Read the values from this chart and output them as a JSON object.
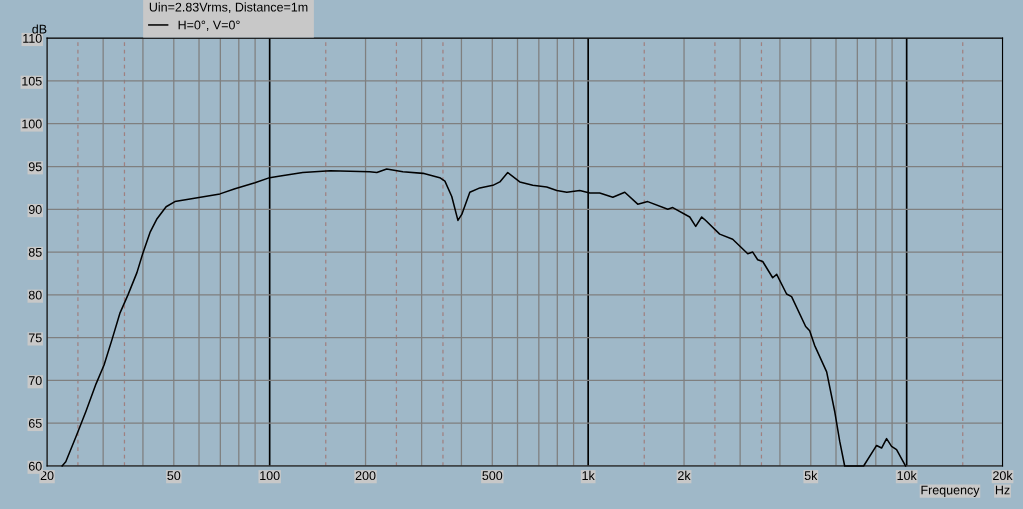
{
  "chart_data": {
    "type": "line",
    "xlabel": "Frequency",
    "ylabel": "dB",
    "legend_title": "Uin=2.83Vrms, Distance=1m",
    "legend": "top left",
    "log": "x",
    "grid": true,
    "marker": "none",
    "line_style": "solid",
    "annotations": [
      "Hz"
    ],
    "xlim": [
      20,
      20000
    ],
    "ylim": [
      60,
      110
    ],
    "xticks": [
      20,
      {
        "value": 25,
        "label": null
      },
      {
        "value": 30,
        "label": null
      },
      {
        "value": 35,
        "label": null
      },
      {
        "value": 40,
        "label": null
      },
      50,
      {
        "value": 60,
        "label": null
      },
      {
        "value": 70,
        "label": null
      },
      {
        "value": 80,
        "label": null
      },
      {
        "value": 90,
        "label": null
      },
      100,
      {
        "value": 150,
        "label": null
      },
      200,
      {
        "value": 250,
        "label": null
      },
      {
        "value": 300,
        "label": null
      },
      {
        "value": 350,
        "label": null
      },
      {
        "value": 400,
        "label": null
      },
      500,
      {
        "value": 600,
        "label": null
      },
      {
        "value": 700,
        "label": null
      },
      {
        "value": 800,
        "label": null
      },
      {
        "value": 900,
        "label": null
      },
      {
        "value": 1000,
        "label": "1k"
      },
      {
        "value": 1500,
        "label": null
      },
      {
        "value": 2000,
        "label": "2k"
      },
      {
        "value": 2500,
        "label": null
      },
      {
        "value": 3000,
        "label": null
      },
      {
        "value": 3500,
        "label": null
      },
      {
        "value": 4000,
        "label": null
      },
      {
        "value": 5000,
        "label": "5k"
      },
      {
        "value": 6000,
        "label": null
      },
      {
        "value": 7000,
        "label": null
      },
      {
        "value": 8000,
        "label": null
      },
      {
        "value": 9000,
        "label": null
      },
      {
        "value": 10000,
        "label": "10k"
      },
      {
        "value": 15000,
        "label": null
      },
      {
        "value": 20000,
        "label": "20k"
      }
    ],
    "yticks": [
      60,
      65,
      70,
      75,
      80,
      85,
      90,
      95,
      100,
      105,
      110
    ],
    "series": [
      {
        "name": "H=0°, V=0°",
        "color": "#000000",
        "x": [
          22.3,
          22.9,
          24.7,
          26.5,
          28.5,
          30.2,
          32.0,
          33.9,
          35.9,
          38.3,
          40.0,
          42.1,
          44.3,
          47.3,
          50.4,
          56.2,
          69.8,
          77.8,
          89.9,
          100,
          108,
          127,
          155,
          206,
          217,
          233,
          262,
          303,
          342,
          355,
          373,
          390,
          401,
          425,
          457,
          502,
          528,
          559,
          610,
          670,
          741,
          797,
          857,
          941,
          1012,
          1087,
          1195,
          1303,
          1431,
          1538,
          1778,
          1843,
          2084,
          2176,
          2272,
          2322,
          2588,
          2843,
          3170,
          3286,
          3406,
          3532,
          3796,
          3908,
          4198,
          4352,
          4818,
          4960,
          5140,
          5608,
          5942,
          6162,
          6388,
          7326,
          8046,
          8342,
          8648,
          8966,
          9296,
          9920
        ],
        "values": [
          60.0,
          60.5,
          63.5,
          66.4,
          69.6,
          71.8,
          74.8,
          77.9,
          80.0,
          82.6,
          84.9,
          87.3,
          88.9,
          90.3,
          90.9,
          91.2,
          91.8,
          92.4,
          93.1,
          93.7,
          93.9,
          94.3,
          94.5,
          94.4,
          94.3,
          94.7,
          94.4,
          94.2,
          93.7,
          93.3,
          91.5,
          88.7,
          89.4,
          92.0,
          92.5,
          92.8,
          93.2,
          94.3,
          93.2,
          92.8,
          92.6,
          92.2,
          92.0,
          92.2,
          91.9,
          91.9,
          91.4,
          92.0,
          90.6,
          90.9,
          90.0,
          90.2,
          89.1,
          88.0,
          89.1,
          88.8,
          87.1,
          86.5,
          84.8,
          85.0,
          84.1,
          83.9,
          82.0,
          82.4,
          80.1,
          79.8,
          76.3,
          75.8,
          74.1,
          71.0,
          66.4,
          62.9,
          60.0,
          60.0,
          62.4,
          62.1,
          63.2,
          62.3,
          61.9,
          60.0
        ]
      }
    ]
  }
}
